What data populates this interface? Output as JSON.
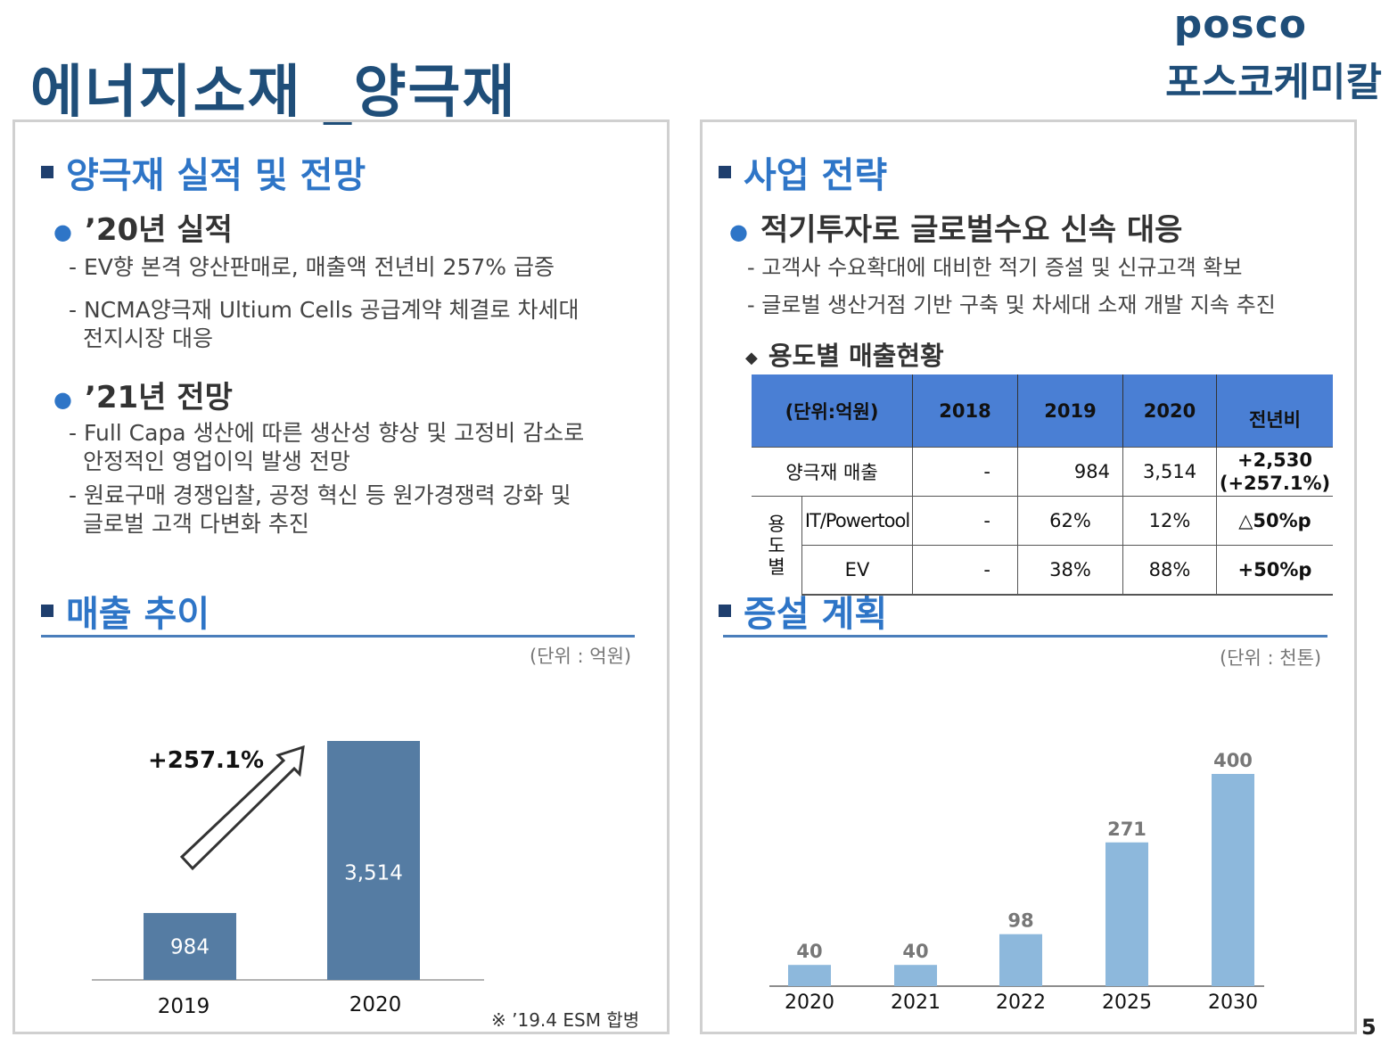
{
  "header": {
    "title": "에너지소재 _양극재",
    "logo_top": "posco",
    "logo_bottom": "포스코케미칼",
    "page_number": "5"
  },
  "left": {
    "section1_title": "양극재 실적 및 전망",
    "bullet1_title": "’20년 실적",
    "bullet1_lines": [
      "- EV향 본격 양산판매로, 매출액 전년비 257% 급증",
      "- NCMA양극재 Ultium Cells 공급계약 체결로 차세대",
      "전지시장 대응"
    ],
    "bullet2_title": "’21년 전망",
    "bullet2_lines": [
      "- Full Capa 생산에 따른 생산성 향상 및 고정비 감소로",
      "안정적인 영업이익 발생 전망",
      "- 원료구매 경쟁입찰, 공정 혁신 등 원가경쟁력 강화 및",
      "글로벌 고객 다변화 추진"
    ],
    "section2_title": "매출 추이",
    "unit": "(단위 : 억원)",
    "growth_label": "+257.1%",
    "note": "※ ’19.4 ESM 합병"
  },
  "right": {
    "section1_title": "사업 전략",
    "bullet_title": "적기투자로 글로벌수요 신속 대응",
    "lines": [
      "- 고객사 수요확대에 대비한 적기 증설 및 신규고객  확보",
      "- 글로벌 생산거점 기반 구축 및 차세대 소재 개발 지속 추진"
    ],
    "sub_title": "용도별 매출현황",
    "table": {
      "headers": [
        "(단위:억원)",
        "2018",
        "2019",
        "2020",
        "전년비"
      ],
      "row_sales": {
        "label": "양극재 매출",
        "v2018": "-",
        "v2019": "984",
        "v2020": "3,514",
        "yoy1": "+2,530",
        "yoy2": "(+257.1%)"
      },
      "usage_label": [
        "용",
        "도",
        "별"
      ],
      "row_it": {
        "label": "IT/Powertool",
        "v2018": "-",
        "v2019": "62%",
        "v2020": "12%",
        "yoy": "△50%p"
      },
      "row_ev": {
        "label": "EV",
        "v2018": "-",
        "v2019": "38%",
        "v2020": "88%",
        "yoy": "+50%p"
      }
    },
    "section2_title": "증설 계획",
    "unit": "(단위 : 천톤)"
  },
  "chart_data": [
    {
      "type": "bar",
      "categories": [
        "2019",
        "2020"
      ],
      "values": [
        984,
        3514
      ],
      "value_labels": [
        "984",
        "3,514"
      ],
      "unit": "억원",
      "color": "#557ca3",
      "annotation": "+257.1%"
    },
    {
      "type": "bar",
      "categories": [
        "2020",
        "2021",
        "2022",
        "2025",
        "2030"
      ],
      "values": [
        40,
        40,
        98,
        271,
        400
      ],
      "value_labels": [
        "40",
        "40",
        "98",
        "271",
        "400"
      ],
      "unit": "천톤",
      "color": "#8db8dc"
    }
  ]
}
